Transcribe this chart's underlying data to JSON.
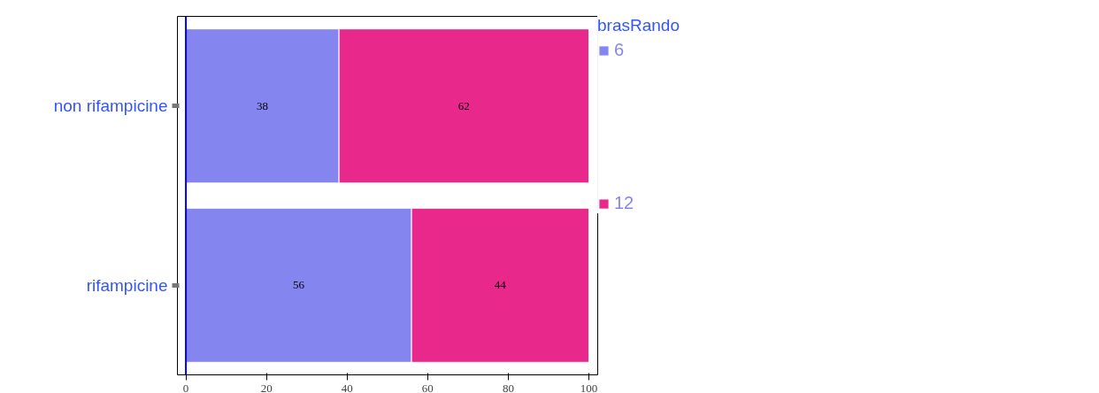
{
  "chart_data": {
    "type": "bar",
    "orientation": "horizontal",
    "stacked": true,
    "legend_title": "brasRando",
    "legend": "right",
    "categories": [
      "non rifampicine",
      "rifampicine"
    ],
    "series": [
      {
        "name": "6",
        "color": "#8585f0",
        "values": [
          38,
          56
        ]
      },
      {
        "name": "12",
        "color": "#e8288a",
        "values": [
          62,
          44
        ]
      }
    ],
    "ref_lines": [
      {
        "axis": "x",
        "value": 0,
        "color": "#0000ff"
      }
    ],
    "xlim": [
      -2.1,
      102.2
    ],
    "xticks": [
      0,
      20,
      40,
      60,
      80,
      100
    ],
    "data_labels": true
  }
}
